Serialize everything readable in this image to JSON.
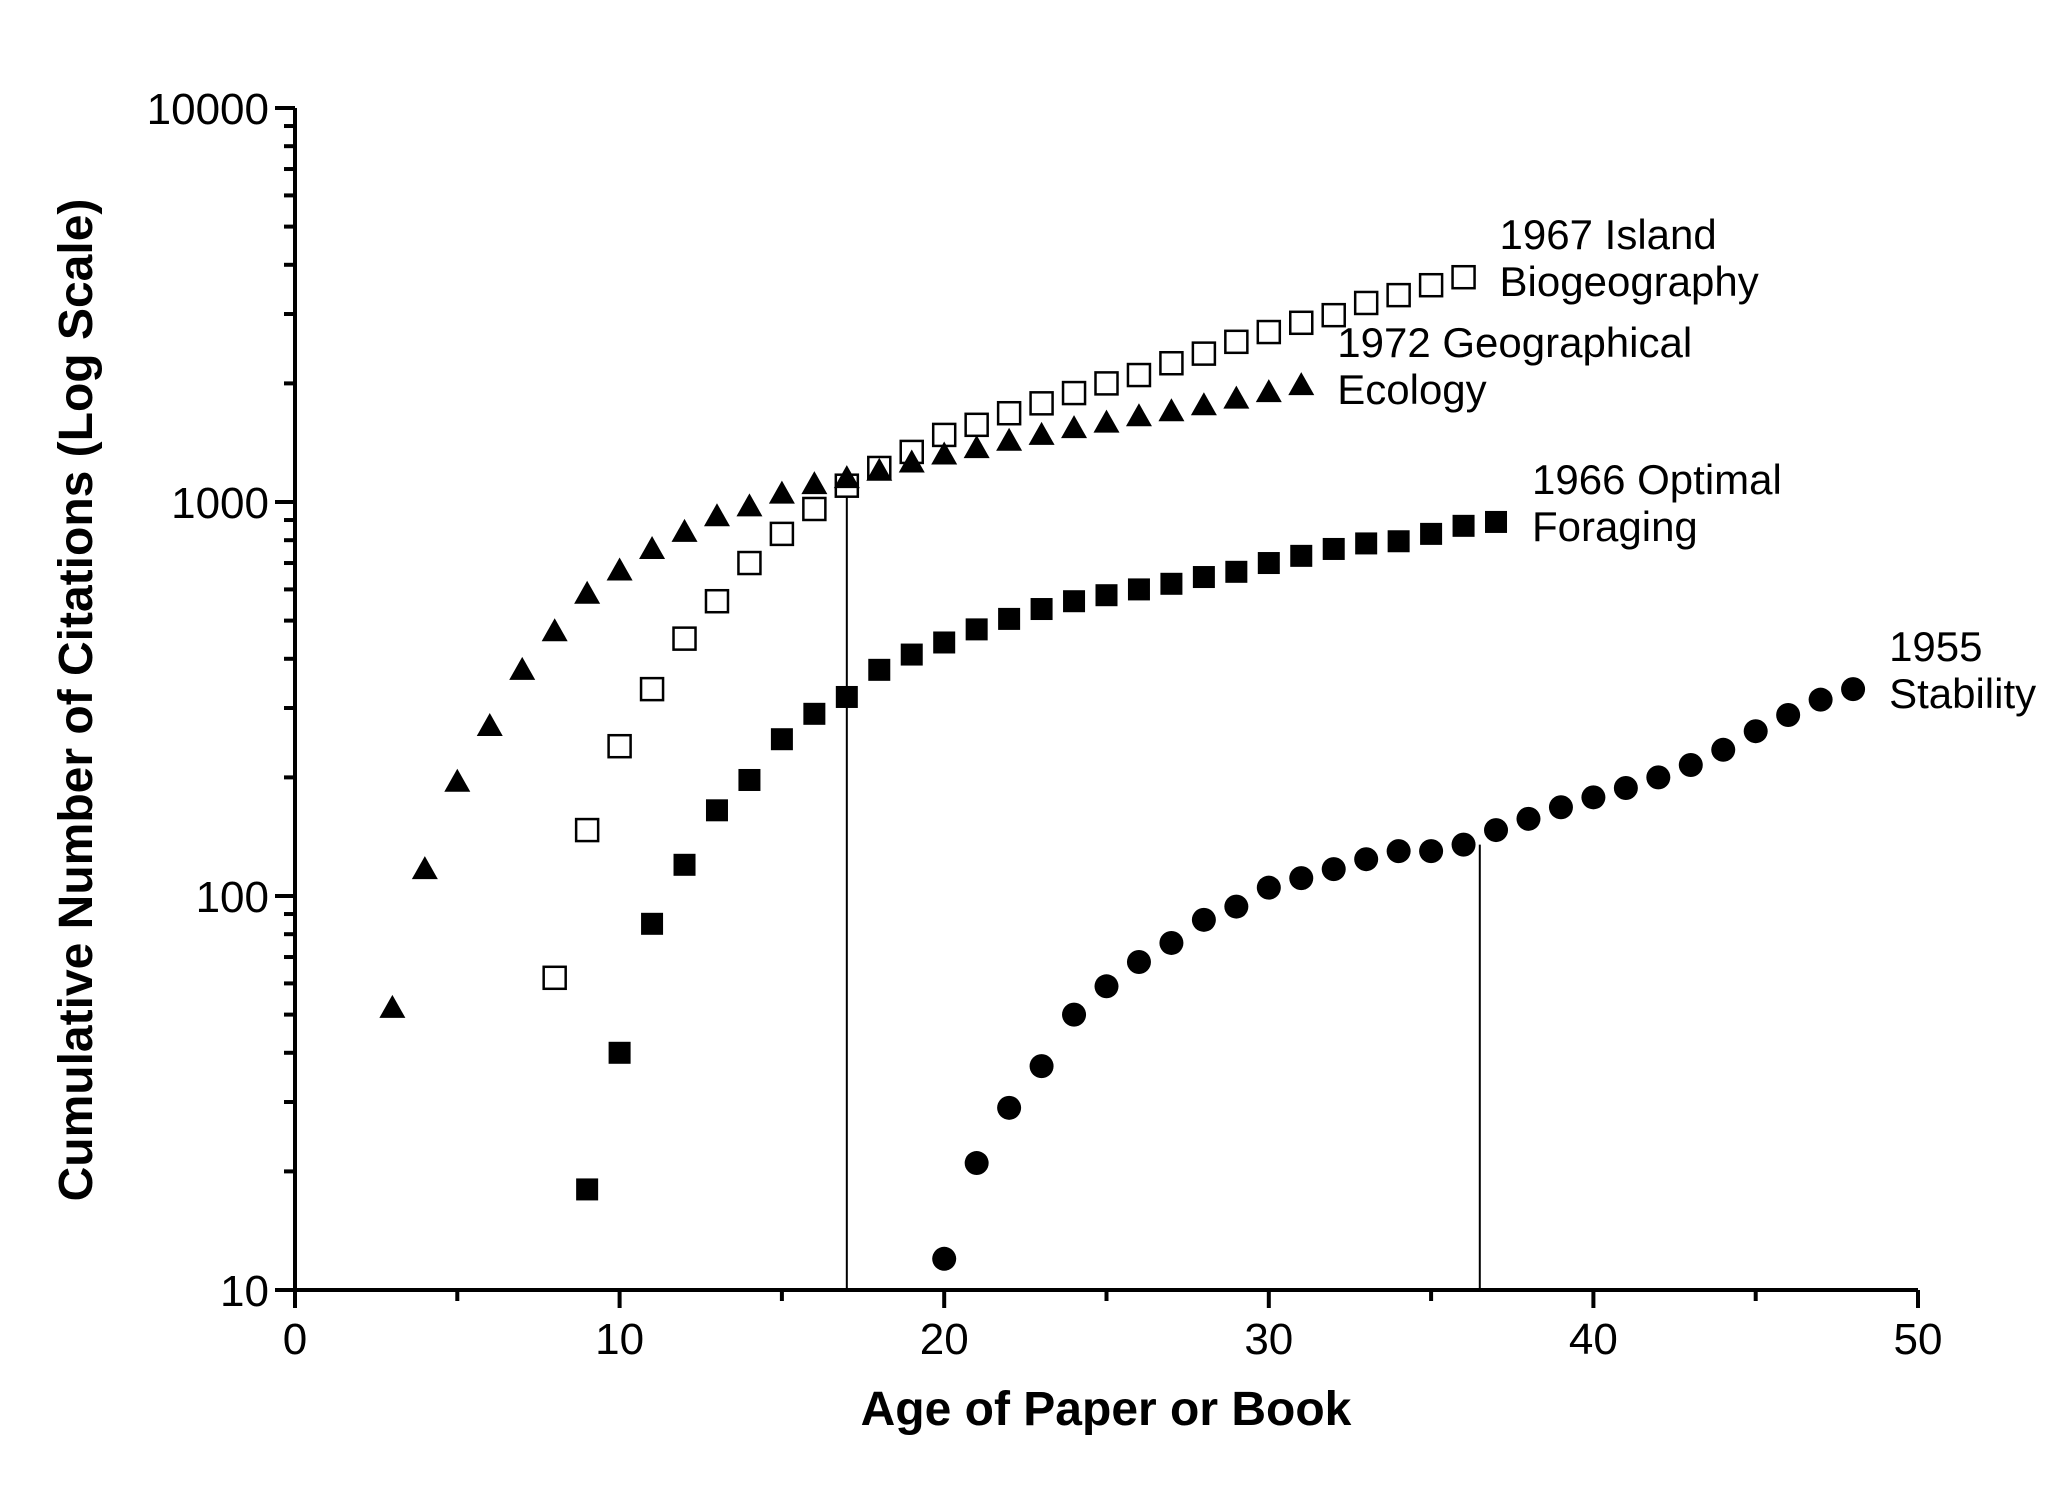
{
  "chart_data": {
    "type": "scatter",
    "xlabel": "Age of Paper or Book",
    "ylabel": "Cumulative Number of Citations (Log Scale)",
    "xlim": [
      0,
      50
    ],
    "ylim": [
      10,
      10000
    ],
    "yscale": "log",
    "x_ticks": [
      "0",
      "10",
      "20",
      "30",
      "40",
      "50"
    ],
    "y_ticks": [
      "10",
      "100",
      "1000",
      "10000"
    ],
    "series": [
      {
        "label_lines": [
          "1967 Island",
          "Biogeography"
        ],
        "marker": "open-square",
        "x": [
          8,
          9,
          10,
          11,
          12,
          13,
          14,
          15,
          16,
          17,
          18,
          19,
          20,
          21,
          22,
          23,
          24,
          25,
          26,
          27,
          28,
          29,
          30,
          31,
          32,
          33,
          34,
          35,
          36
        ],
        "y": [
          62,
          147,
          240,
          335,
          450,
          560,
          700,
          830,
          960,
          1100,
          1220,
          1340,
          1480,
          1570,
          1680,
          1780,
          1890,
          2000,
          2100,
          2250,
          2380,
          2550,
          2700,
          2850,
          2980,
          3200,
          3350,
          3550,
          3720
        ]
      },
      {
        "label_lines": [
          "1972 Geographical",
          "Ecology"
        ],
        "marker": "filled-triangle",
        "x": [
          3,
          4,
          5,
          6,
          7,
          8,
          9,
          10,
          11,
          12,
          13,
          14,
          15,
          16,
          17,
          18,
          19,
          20,
          21,
          22,
          23,
          24,
          25,
          26,
          27,
          28,
          29,
          30,
          31
        ],
        "y": [
          52,
          117,
          195,
          270,
          375,
          470,
          585,
          670,
          760,
          840,
          920,
          975,
          1050,
          1110,
          1150,
          1200,
          1260,
          1320,
          1370,
          1430,
          1480,
          1540,
          1590,
          1650,
          1700,
          1760,
          1830,
          1900,
          1980
        ]
      },
      {
        "label_lines": [
          "1966 Optimal",
          "Foraging"
        ],
        "marker": "filled-square",
        "x": [
          9,
          10,
          11,
          12,
          13,
          14,
          15,
          16,
          17,
          18,
          19,
          20,
          21,
          22,
          23,
          24,
          25,
          26,
          27,
          28,
          29,
          30,
          31,
          32,
          33,
          34,
          35,
          36,
          37
        ],
        "y": [
          18,
          40,
          85,
          120,
          165,
          197,
          250,
          290,
          320,
          375,
          410,
          440,
          475,
          505,
          535,
          560,
          580,
          600,
          620,
          645,
          665,
          700,
          730,
          760,
          785,
          795,
          830,
          870,
          890
        ]
      },
      {
        "label_lines": [
          "1955",
          "Stability"
        ],
        "marker": "filled-circle",
        "x": [
          20,
          21,
          22,
          23,
          24,
          25,
          26,
          27,
          28,
          29,
          30,
          31,
          32,
          33,
          34,
          35,
          36,
          37,
          38,
          39,
          40,
          41,
          42,
          43,
          44,
          45,
          46,
          47,
          48
        ],
        "y": [
          12,
          21,
          29,
          37,
          50,
          59,
          68,
          76,
          87,
          94,
          105,
          111,
          117,
          124,
          130,
          130,
          135,
          147,
          157,
          168,
          178,
          188,
          200,
          215,
          235,
          262,
          288,
          315,
          335
        ]
      }
    ],
    "reference_lines": [
      {
        "x": 17,
        "y": 1100
      },
      {
        "x": 36.5,
        "y": 135
      }
    ]
  }
}
